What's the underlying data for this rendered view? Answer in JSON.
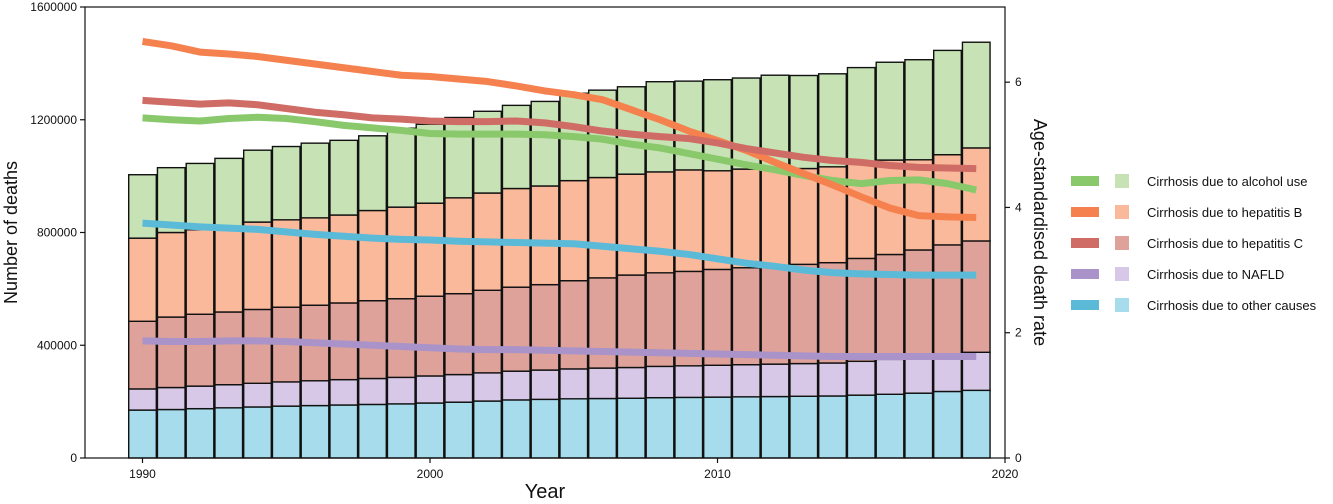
{
  "chart_data": {
    "type": "bar",
    "subtype": "stacked bar with line overlay (dual axis)",
    "title": "",
    "xlabel": "Year",
    "ylabel_left": "Number of deaths",
    "ylabel_right": "Age-standardised death rate",
    "xlim": [
      1988,
      2020
    ],
    "ylim_left": [
      0,
      1600000
    ],
    "ylim_right": [
      0,
      7.2
    ],
    "x_ticks": [
      1990,
      2000,
      2010,
      2020
    ],
    "y_ticks_left": [
      0,
      400000,
      800000,
      1200000,
      1600000
    ],
    "y_ticks_right": [
      0,
      2,
      4,
      6
    ],
    "grid": false,
    "legend_position": "right",
    "years": [
      1990,
      1991,
      1992,
      1993,
      1994,
      1995,
      1996,
      1997,
      1998,
      1999,
      2000,
      2001,
      2002,
      2003,
      2004,
      2005,
      2006,
      2007,
      2008,
      2009,
      2010,
      2011,
      2012,
      2013,
      2014,
      2015,
      2016,
      2017,
      2018,
      2019
    ],
    "bar_series": [
      {
        "name": "Cirrhosis due to other causes",
        "color": "#a6dcec",
        "values": [
          170000,
          172000,
          175000,
          178000,
          181000,
          184000,
          186000,
          188000,
          190000,
          192000,
          195000,
          198000,
          202000,
          206000,
          208000,
          210000,
          211000,
          212000,
          214000,
          215000,
          216000,
          217000,
          218000,
          219000,
          220000,
          223000,
          226000,
          230000,
          236000,
          240000
        ]
      },
      {
        "name": "Cirrhosis due to NAFLD",
        "color": "#d6c8e6",
        "values": [
          75000,
          78000,
          80000,
          82000,
          84000,
          86000,
          88000,
          90000,
          92000,
          94000,
          96000,
          98000,
          100000,
          102000,
          104000,
          106000,
          108000,
          109000,
          111000,
          112000,
          113000,
          114000,
          115000,
          116000,
          117000,
          120000,
          124000,
          128000,
          132000,
          135000
        ]
      },
      {
        "name": "Cirrhosis due to hepatitis C",
        "color": "#dea29a",
        "values": [
          240000,
          250000,
          255000,
          258000,
          262000,
          265000,
          268000,
          272000,
          276000,
          279000,
          283000,
          287000,
          293000,
          298000,
          303000,
          313000,
          320000,
          328000,
          332000,
          335000,
          340000,
          344000,
          348000,
          352000,
          356000,
          365000,
          372000,
          380000,
          388000,
          395000
        ]
      },
      {
        "name": "Cirrhosis due to hepatitis B",
        "color": "#fbb99c",
        "values": [
          295000,
          300000,
          300000,
          300000,
          310000,
          310000,
          310000,
          312000,
          320000,
          325000,
          330000,
          340000,
          345000,
          350000,
          350000,
          355000,
          356000,
          358000,
          358000,
          360000,
          350000,
          350000,
          345000,
          340000,
          340000,
          337000,
          335000,
          320000,
          320000,
          330000
        ]
      },
      {
        "name": "Cirrhosis due to alcohol use",
        "color": "#c7e3b5",
        "values": [
          225000,
          230000,
          235000,
          245000,
          255000,
          260000,
          265000,
          265000,
          265000,
          280000,
          280000,
          285000,
          290000,
          295000,
          300000,
          310000,
          310000,
          310000,
          320000,
          315000,
          323000,
          323000,
          332000,
          330000,
          330000,
          340000,
          347000,
          355000,
          370000,
          375000
        ]
      }
    ],
    "line_series": [
      {
        "name": "Cirrhosis due to alcohol use",
        "color": "#8ac86c",
        "values": [
          5.43,
          5.4,
          5.38,
          5.42,
          5.44,
          5.42,
          5.37,
          5.31,
          5.27,
          5.23,
          5.18,
          5.17,
          5.17,
          5.17,
          5.16,
          5.13,
          5.09,
          5.01,
          4.95,
          4.86,
          4.77,
          4.68,
          4.6,
          4.51,
          4.43,
          4.38,
          4.43,
          4.44,
          4.38,
          4.28
        ]
      },
      {
        "name": "Cirrhosis due to hepatitis B",
        "color": "#f5824e",
        "values": [
          6.65,
          6.58,
          6.48,
          6.45,
          6.41,
          6.35,
          6.29,
          6.23,
          6.17,
          6.11,
          6.09,
          6.05,
          6.01,
          5.94,
          5.86,
          5.8,
          5.72,
          5.56,
          5.4,
          5.22,
          5.07,
          4.91,
          4.72,
          4.54,
          4.36,
          4.17,
          3.99,
          3.87,
          3.85,
          3.84
        ]
      },
      {
        "name": "Cirrhosis due to hepatitis C",
        "color": "#cf6c66",
        "values": [
          5.71,
          5.68,
          5.65,
          5.67,
          5.64,
          5.58,
          5.52,
          5.48,
          5.43,
          5.41,
          5.38,
          5.37,
          5.37,
          5.38,
          5.35,
          5.29,
          5.22,
          5.17,
          5.13,
          5.1,
          5.03,
          4.94,
          4.87,
          4.8,
          4.75,
          4.72,
          4.67,
          4.64,
          4.63,
          4.62
        ]
      },
      {
        "name": "Cirrhosis due to NAFLD",
        "color": "#a993c9",
        "values": [
          1.87,
          1.86,
          1.86,
          1.87,
          1.87,
          1.86,
          1.84,
          1.82,
          1.8,
          1.78,
          1.76,
          1.74,
          1.73,
          1.73,
          1.72,
          1.71,
          1.7,
          1.69,
          1.68,
          1.67,
          1.66,
          1.65,
          1.64,
          1.63,
          1.62,
          1.62,
          1.62,
          1.62,
          1.62,
          1.62
        ]
      },
      {
        "name": "Cirrhosis due to other causes",
        "color": "#5bbad8",
        "values": [
          3.75,
          3.72,
          3.69,
          3.67,
          3.65,
          3.61,
          3.57,
          3.54,
          3.51,
          3.49,
          3.48,
          3.46,
          3.45,
          3.44,
          3.43,
          3.42,
          3.38,
          3.34,
          3.3,
          3.25,
          3.18,
          3.11,
          3.06,
          3.0,
          2.96,
          2.94,
          2.93,
          2.92,
          2.92,
          2.92
        ]
      }
    ],
    "legend": [
      {
        "label": "Cirrhosis due to alcohol use",
        "line_color": "#8ac86c",
        "bar_color": "#c7e3b5"
      },
      {
        "label": "Cirrhosis due to hepatitis B",
        "line_color": "#f5824e",
        "bar_color": "#fbb99c"
      },
      {
        "label": "Cirrhosis due to hepatitis C",
        "line_color": "#cf6c66",
        "bar_color": "#dea29a"
      },
      {
        "label": "Cirrhosis due to NAFLD",
        "line_color": "#a993c9",
        "bar_color": "#d6c8e6"
      },
      {
        "label": "Cirrhosis due to other causes",
        "line_color": "#5bbad8",
        "bar_color": "#a6dcec"
      }
    ]
  }
}
